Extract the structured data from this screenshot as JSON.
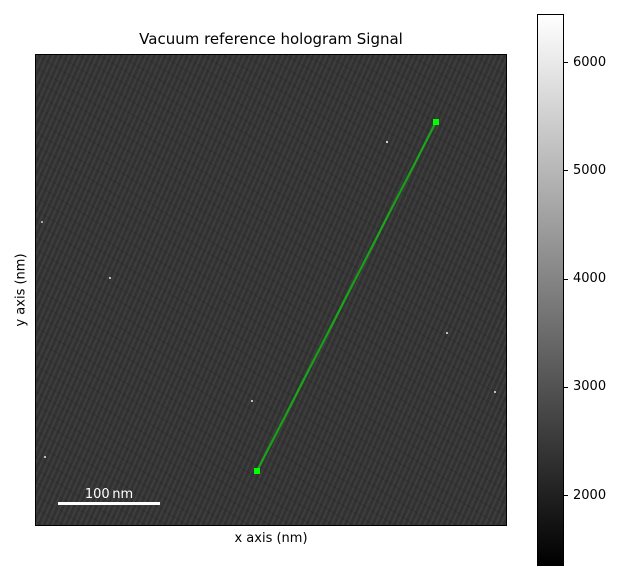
{
  "plot": {
    "title": "Vacuum reference hologram Signal",
    "xlabel": "x axis (nm)",
    "ylabel": "y axis (nm)"
  },
  "scalebar": {
    "label": "100 nm"
  },
  "colorbar": {
    "vmin": 1350,
    "vmax": 6450,
    "cmap": "gray",
    "ticks": [
      "2000",
      "3000",
      "4000",
      "5000",
      "6000"
    ]
  },
  "colors": {
    "line_profile": "#00ff00",
    "image_base": "#333333"
  }
}
